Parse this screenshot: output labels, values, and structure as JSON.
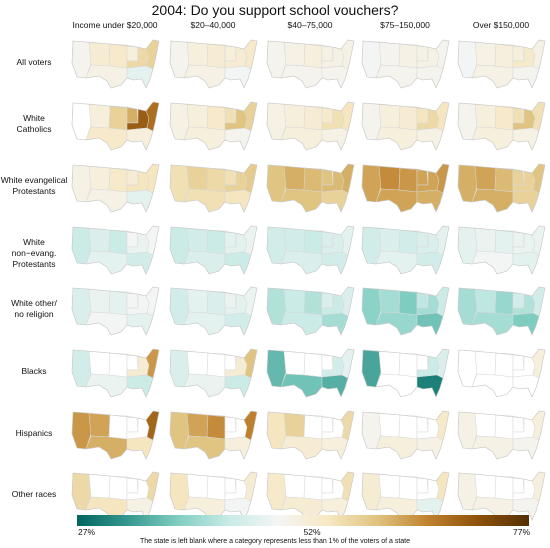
{
  "title": "2004: Do you support school vouchers?",
  "columns": [
    "Income under $20,000",
    "$20–40,000",
    "$40–75,000",
    "$75–150,000",
    "Over $150,000"
  ],
  "rows": [
    "All voters",
    "White\nCatholics",
    "White evangelical\nProtestants",
    "White non−evang.\nProtestants",
    "White other/\nno religion",
    "Blacks",
    "Hispanics",
    "Other races"
  ],
  "colorbar": {
    "min_label": "27%",
    "mid_label": "52%",
    "max_label": "77%",
    "colors": [
      "#01665e",
      "#35978f",
      "#80cdc1",
      "#c7eae5",
      "#f5f5f5",
      "#f6e8c3",
      "#dfc27d",
      "#bf812d",
      "#8c510a",
      "#543005"
    ]
  },
  "note": "The state is left blank where a category represents less than 1% of the voters of a state",
  "chart_data": {
    "type": "heatmap",
    "title": "2004: Do you support school vouchers?",
    "categories": [
      "Income under $20,000",
      "$20–40,000",
      "$40–75,000",
      "$75–150,000",
      "Over $150,000"
    ],
    "scale": {
      "min": 27,
      "mid": 52,
      "max": 77,
      "unit": "%"
    },
    "regions": [
      "West",
      "Mountain",
      "Plains",
      "Texas/South-Central",
      "Upper Midwest",
      "Great Lakes",
      "Southeast",
      "Northeast"
    ],
    "series": [
      {
        "name": "All voters",
        "values": [
          [
            50,
            53,
            54,
            51,
            52,
            57,
            47,
            58
          ],
          [
            50,
            52,
            53,
            51,
            52,
            53,
            49,
            54
          ],
          [
            50,
            51,
            52,
            50,
            51,
            51,
            50,
            51
          ],
          [
            49,
            50,
            51,
            50,
            51,
            51,
            50,
            50
          ],
          [
            49,
            51,
            52,
            51,
            52,
            54,
            50,
            51
          ]
        ]
      },
      {
        "name": "White Catholics",
        "values": [
          [
            null,
            52,
            58,
            54,
            62,
            70,
            52,
            68
          ],
          [
            51,
            52,
            54,
            52,
            56,
            60,
            50,
            58
          ],
          [
            51,
            52,
            53,
            52,
            54,
            56,
            51,
            55
          ],
          [
            50,
            52,
            53,
            52,
            55,
            57,
            51,
            55
          ],
          [
            50,
            52,
            54,
            52,
            56,
            60,
            51,
            56
          ]
        ]
      },
      {
        "name": "White evangelical Protestants",
        "values": [
          [
            51,
            52,
            54,
            51,
            53,
            55,
            47,
            55
          ],
          [
            56,
            58,
            57,
            56,
            56,
            58,
            55,
            59
          ],
          [
            60,
            62,
            61,
            60,
            60,
            61,
            58,
            62
          ],
          [
            63,
            65,
            64,
            63,
            63,
            63,
            62,
            64
          ],
          [
            62,
            63,
            61,
            62,
            58,
            58,
            58,
            60
          ]
        ]
      },
      {
        "name": "White non-evang. Protestants",
        "values": [
          [
            44,
            46,
            44,
            47,
            49,
            48,
            45,
            49
          ],
          [
            44,
            45,
            44,
            46,
            47,
            47,
            44,
            48
          ],
          [
            45,
            45,
            44,
            46,
            46,
            46,
            45,
            47
          ],
          [
            45,
            46,
            45,
            47,
            46,
            46,
            45,
            47
          ],
          [
            47,
            48,
            47,
            49,
            48,
            48,
            47,
            48
          ]
        ]
      },
      {
        "name": "White other/no religion",
        "values": [
          [
            46,
            48,
            47,
            49,
            49,
            49,
            47,
            49
          ],
          [
            45,
            47,
            46,
            47,
            48,
            47,
            45,
            48
          ],
          [
            42,
            44,
            42,
            44,
            46,
            44,
            41,
            46
          ],
          [
            39,
            41,
            38,
            40,
            43,
            41,
            37,
            44
          ],
          [
            41,
            43,
            40,
            41,
            45,
            42,
            38,
            45
          ]
        ]
      },
      {
        "name": "Blacks",
        "values": [
          [
            45,
            null,
            null,
            48,
            null,
            53,
            44,
            64
          ],
          [
            46,
            null,
            null,
            48,
            null,
            53,
            44,
            60
          ],
          [
            36,
            null,
            null,
            37,
            null,
            45,
            35,
            47
          ],
          [
            34,
            null,
            null,
            null,
            null,
            44,
            30,
            46
          ],
          [
            null,
            null,
            null,
            null,
            null,
            null,
            null,
            52
          ]
        ]
      },
      {
        "name": "Hispanics",
        "values": [
          [
            64,
            63,
            null,
            62,
            null,
            null,
            55,
            69
          ],
          [
            60,
            63,
            65,
            60,
            null,
            null,
            52,
            66
          ],
          [
            55,
            58,
            null,
            53,
            null,
            null,
            52,
            57
          ],
          [
            50,
            null,
            null,
            52,
            null,
            null,
            51,
            54
          ],
          [
            51,
            null,
            null,
            51,
            null,
            null,
            50,
            52
          ]
        ]
      },
      {
        "name": "Other races",
        "values": [
          [
            57,
            null,
            null,
            55,
            null,
            null,
            51,
            57
          ],
          [
            55,
            null,
            null,
            52,
            null,
            null,
            49,
            53
          ],
          [
            54,
            null,
            null,
            53,
            null,
            null,
            52,
            56
          ],
          [
            53,
            null,
            null,
            52,
            null,
            null,
            47,
            55
          ],
          [
            51,
            null,
            null,
            51,
            null,
            null,
            50,
            52
          ]
        ]
      }
    ]
  }
}
